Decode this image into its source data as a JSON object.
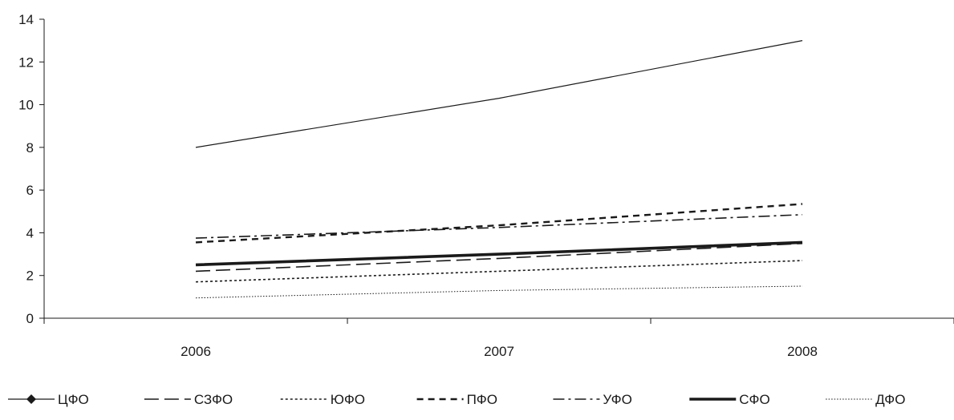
{
  "chart_data": {
    "type": "line",
    "title": "",
    "xlabel": "",
    "ylabel": "",
    "categories": [
      "2006",
      "2007",
      "2008"
    ],
    "ylim": [
      0,
      14
    ],
    "yticks": [
      "0",
      "2",
      "4",
      "6",
      "8",
      "10",
      "12",
      "14"
    ],
    "grid": false,
    "legend_position": "bottom",
    "series": [
      {
        "name": "ЦФО",
        "values": [
          8.0,
          10.3,
          13.0
        ],
        "style": "solid-marker",
        "color": "#1a1a1a"
      },
      {
        "name": "СЗФО",
        "values": [
          2.2,
          2.8,
          3.5
        ],
        "style": "long-dash",
        "color": "#1a1a1a"
      },
      {
        "name": "ЮФО",
        "values": [
          1.7,
          2.2,
          2.7
        ],
        "style": "dotted",
        "color": "#1a1a1a"
      },
      {
        "name": "ПФО",
        "values": [
          3.55,
          4.35,
          5.35
        ],
        "style": "dashed",
        "color": "#1a1a1a"
      },
      {
        "name": "УФО",
        "values": [
          3.75,
          4.25,
          4.85
        ],
        "style": "dash-dot",
        "color": "#1a1a1a"
      },
      {
        "name": "СФО",
        "values": [
          2.5,
          3.0,
          3.55
        ],
        "style": "thick",
        "color": "#1a1a1a"
      },
      {
        "name": "ДФО",
        "values": [
          0.95,
          1.3,
          1.5
        ],
        "style": "fine-dotted",
        "color": "#1a1a1a"
      }
    ]
  }
}
